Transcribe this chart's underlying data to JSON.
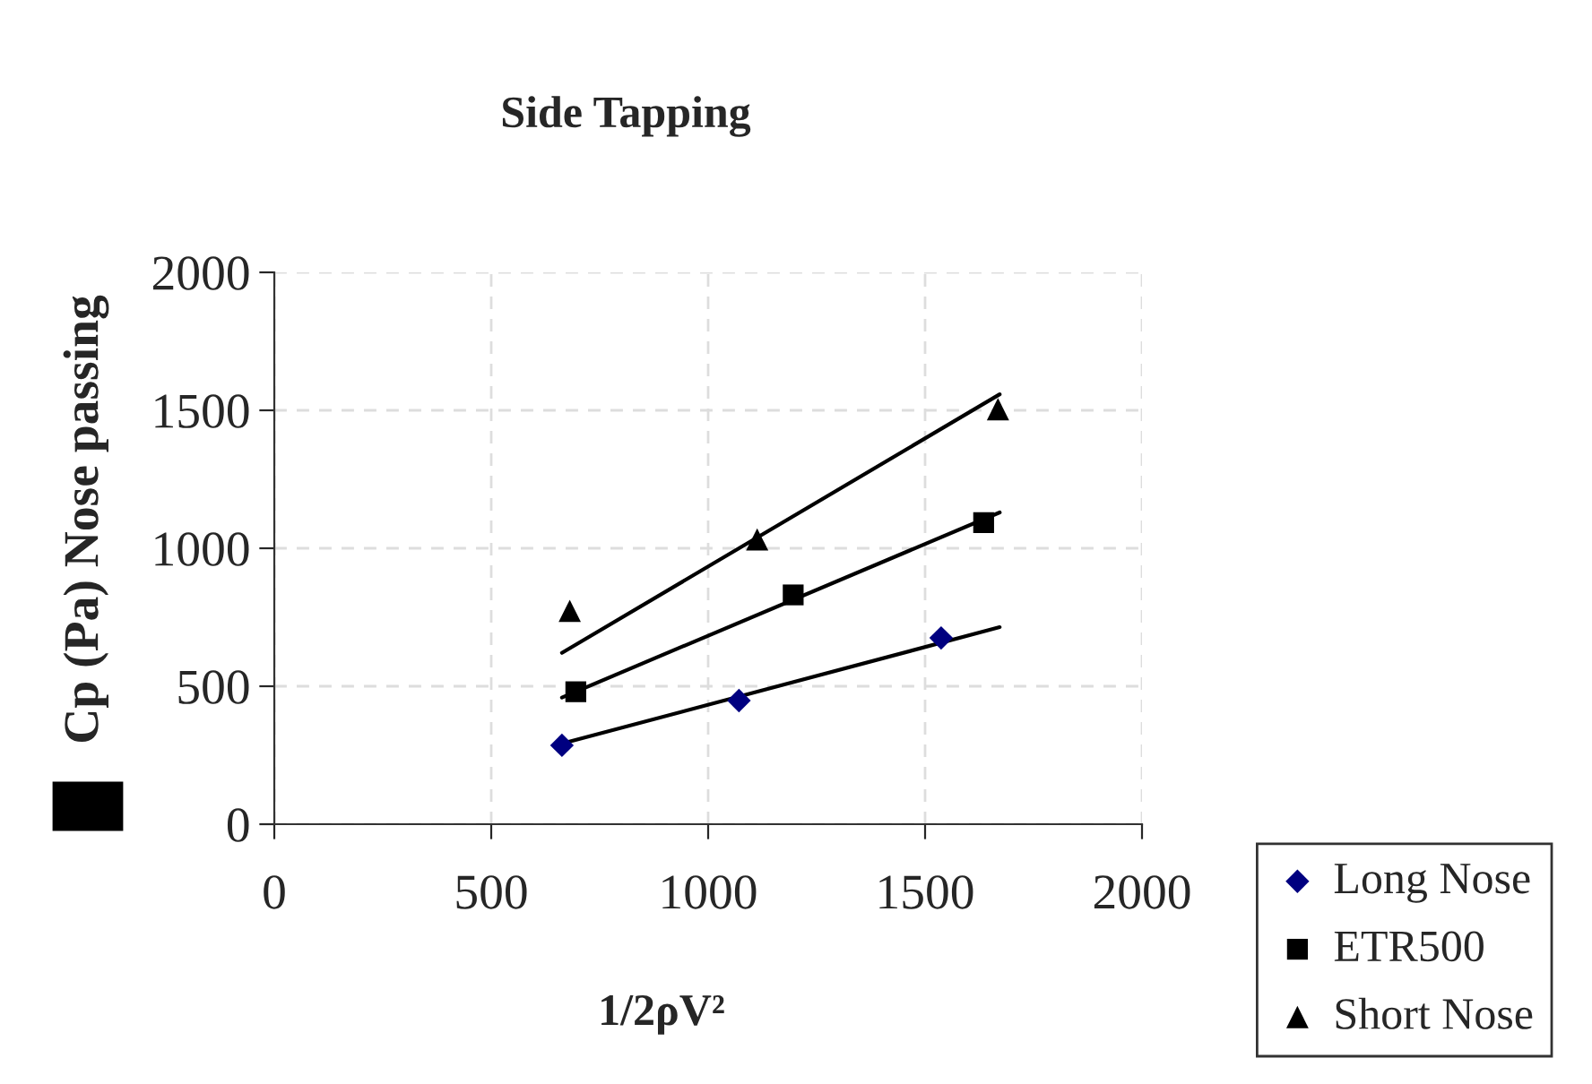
{
  "chart_data": {
    "type": "scatter",
    "title": "Side Tapping",
    "xlabel": "1/2ρV²",
    "ylabel": "Cp (Pa) Nose passing",
    "xlim": [
      0,
      2000
    ],
    "ylim": [
      0,
      2000
    ],
    "xticks": [
      0,
      500,
      1000,
      1500,
      2000
    ],
    "yticks": [
      0,
      500,
      1000,
      1500,
      2000
    ],
    "grid": true,
    "legend": "bottom right",
    "series": [
      {
        "name": "Long Nose",
        "color": "#000080",
        "marker": "diamond",
        "x": [
          663,
          1071,
          1537
        ],
        "values": [
          286,
          448,
          675
        ]
      },
      {
        "name": "ETR500",
        "color": "#000000",
        "marker": "square",
        "x": [
          695,
          1196,
          1635
        ],
        "values": [
          480,
          831,
          1093
        ]
      },
      {
        "name": "Short Nose",
        "color": "#000000",
        "marker": "triangle",
        "x": [
          681,
          1113,
          1668
        ],
        "values": [
          773,
          1032,
          1504
        ]
      },
      {
        "type": "line",
        "color": "#000000",
        "x": [
          663,
          1672
        ],
        "values": [
          292,
          714
        ]
      },
      {
        "type": "line",
        "color": "#000000",
        "x": [
          663,
          1672
        ],
        "values": [
          459,
          1130
        ]
      },
      {
        "type": "line",
        "color": "#000000",
        "x": [
          663,
          1672
        ],
        "values": [
          621,
          1558
        ]
      }
    ]
  }
}
